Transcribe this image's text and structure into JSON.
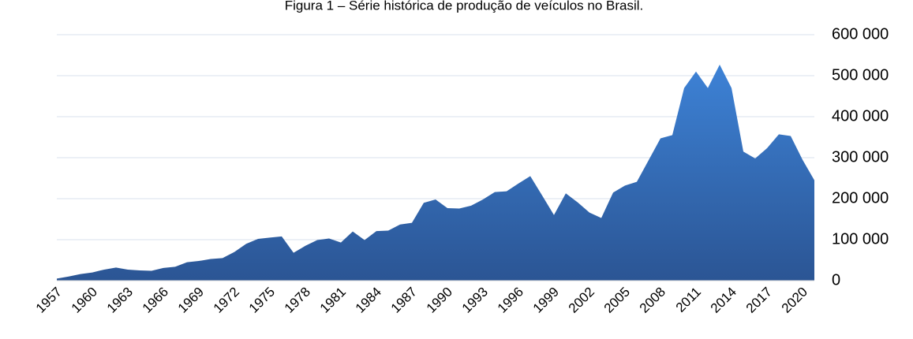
{
  "chart_data": {
    "type": "area",
    "title": "Figura 1 – Série histórica de produção de veículos no Brasil.",
    "categories": [
      "1957",
      null,
      null,
      "1960",
      null,
      null,
      "1963",
      null,
      null,
      "1966",
      null,
      null,
      "1969",
      null,
      null,
      "1972",
      null,
      null,
      "1975",
      null,
      null,
      "1978",
      null,
      null,
      "1981",
      null,
      null,
      "1984",
      null,
      null,
      "1987",
      null,
      null,
      "1990",
      null,
      null,
      "1993",
      null,
      null,
      "1996",
      null,
      null,
      "1999",
      null,
      null,
      "2002",
      null,
      null,
      "2005",
      null,
      null,
      "2008",
      null,
      null,
      "2011",
      null,
      null,
      "2014",
      null,
      null,
      "2017",
      null,
      null,
      "2020",
      null
    ],
    "values": [
      5000,
      10000,
      16000,
      20000,
      27000,
      32000,
      27000,
      25000,
      24000,
      31000,
      34000,
      45000,
      48000,
      53000,
      55000,
      70000,
      90000,
      102000,
      105000,
      108000,
      68000,
      85000,
      99000,
      103000,
      93000,
      120000,
      99000,
      121000,
      122000,
      137000,
      141000,
      190000,
      198000,
      177000,
      176000,
      183000,
      198000,
      216000,
      218000,
      237000,
      255000,
      208000,
      160000,
      213000,
      191000,
      166000,
      153000,
      215000,
      232000,
      241000,
      294000,
      347000,
      355000,
      470000,
      510000,
      470000,
      527000,
      470000,
      315000,
      298000,
      323000,
      357000,
      353000,
      295000,
      245000
    ],
    "gradient": [
      "#3d82d6",
      "#2b5594"
    ],
    "ylim": [
      0,
      600000
    ],
    "yticks": [
      0,
      {
        "value": 100000,
        "label": "100 000"
      },
      {
        "value": 200000,
        "label": "200 000"
      },
      {
        "value": 300000,
        "label": "300 000"
      },
      {
        "value": 400000,
        "label": "400 000"
      },
      {
        "value": 500000,
        "label": "500 000"
      },
      {
        "value": 600000,
        "label": "600 000"
      }
    ],
    "grid": true,
    "y_axis_side": "right"
  }
}
